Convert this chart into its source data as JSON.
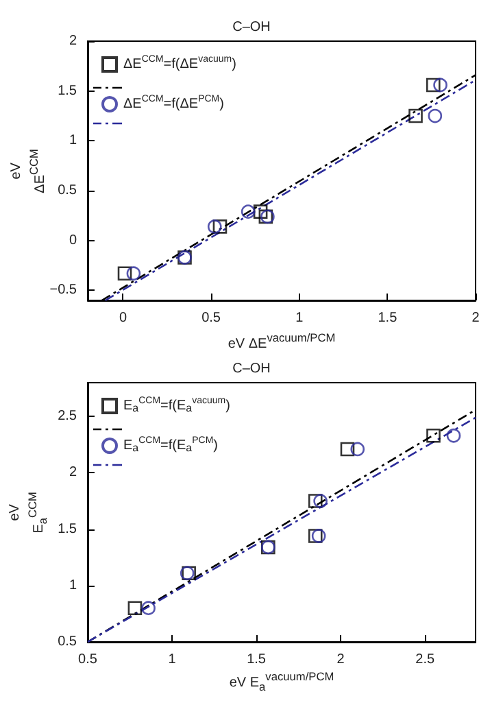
{
  "chart_data": [
    {
      "type": "scatter",
      "title": "C–OH",
      "xlabel": "eV  ΔE$^{vacuum/PCM}$",
      "ylabel": "eV\nΔE$^{CCM}$",
      "xlim": [
        -0.2,
        2
      ],
      "ylim": [
        -0.6,
        2
      ],
      "xticks": [
        0,
        0.5,
        1,
        1.5,
        2
      ],
      "yticks": [
        -0.5,
        0,
        0.5,
        1,
        1.5,
        2
      ],
      "grid": false,
      "legend": "top left",
      "series": [
        {
          "name": "ΔE$^{CCM}$=f(ΔE$^{vacuum}$)",
          "color": "#000000",
          "marker": "square",
          "x": [
            0.01,
            0.35,
            0.55,
            0.78,
            0.81,
            1.66,
            1.76
          ],
          "values": [
            -0.33,
            -0.17,
            0.14,
            0.29,
            0.24,
            1.25,
            1.56
          ]
        },
        {
          "type": "line",
          "color": "#000000",
          "line_style": "dashed",
          "marker": "none",
          "x": [
            -0.12,
            2
          ],
          "values": [
            -0.6,
            1.66
          ]
        },
        {
          "name": "ΔE$^{CCM}$=f(ΔE$^{PCM}$)",
          "color": "#2b2b9a",
          "marker": "circle",
          "x": [
            0.06,
            0.35,
            0.52,
            0.71,
            0.82,
            1.77,
            1.8
          ],
          "values": [
            -0.33,
            -0.17,
            0.14,
            0.29,
            0.24,
            1.25,
            1.56
          ]
        },
        {
          "type": "line",
          "color": "#2b2b9a",
          "line_style": "dashed",
          "marker": "none",
          "x": [
            -0.1,
            2
          ],
          "values": [
            -0.6,
            1.61
          ]
        }
      ]
    },
    {
      "type": "scatter",
      "title": "C–OH",
      "xlabel": "eV  E$_{a}$$^{vacuum/PCM}$",
      "ylabel": "eV\nE$_{a}$$^{CCM}$",
      "xlim": [
        0.5,
        2.8
      ],
      "ylim": [
        0.5,
        2.8
      ],
      "xticks": [
        0.5,
        1,
        1.5,
        2,
        2.5
      ],
      "yticks": [
        0.5,
        1,
        1.5,
        2,
        2.5
      ],
      "grid": false,
      "legend": "top left",
      "series": [
        {
          "name": "E$_{a}$$^{CCM}$=f(E$_{a}$$^{vacuum}$)",
          "color": "#000000",
          "marker": "square",
          "x": [
            0.78,
            1.1,
            1.57,
            1.85,
            1.85,
            2.04,
            2.55
          ],
          "values": [
            0.8,
            1.11,
            1.34,
            1.75,
            1.44,
            2.21,
            2.33
          ]
        },
        {
          "type": "line",
          "color": "#000000",
          "line_style": "dashed",
          "marker": "none",
          "x": [
            0.5,
            2.79
          ],
          "values": [
            0.5,
            2.55
          ]
        },
        {
          "name": "E$_{a}$$^{CCM}$=f(E$_{a}$$^{PCM}$)",
          "color": "#2b2b9a",
          "marker": "circle",
          "x": [
            0.86,
            1.09,
            1.57,
            1.88,
            1.87,
            2.1,
            2.67
          ],
          "values": [
            0.8,
            1.11,
            1.34,
            1.75,
            1.44,
            2.21,
            2.33
          ]
        },
        {
          "type": "line",
          "color": "#2b2b9a",
          "line_style": "dashed",
          "marker": "none",
          "x": [
            0.5,
            2.8
          ],
          "values": [
            0.5,
            2.49
          ]
        }
      ]
    }
  ]
}
